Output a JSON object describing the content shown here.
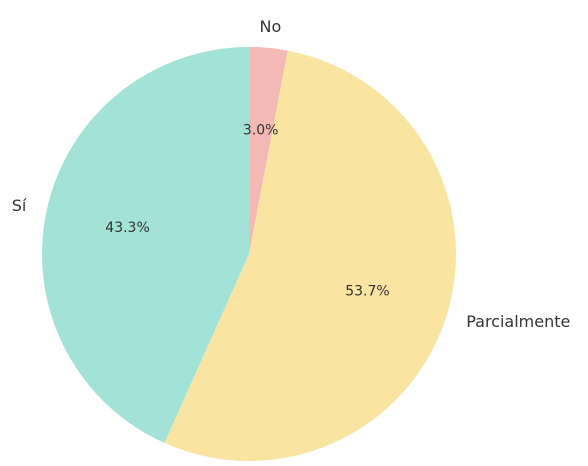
{
  "chart_data": {
    "type": "pie",
    "slices": [
      {
        "label": "No",
        "value": 3.0,
        "pct_label": "3.0%",
        "color": "#f4b8b5"
      },
      {
        "label": "Parcialmente",
        "value": 53.7,
        "pct_label": "53.7%",
        "color": "#f9e4a1"
      },
      {
        "label": "Sí",
        "value": 43.3,
        "pct_label": "43.3%",
        "color": "#a3e2d7"
      }
    ],
    "start_angle_deg": 90,
    "direction": "clockwise",
    "legend": "none"
  }
}
